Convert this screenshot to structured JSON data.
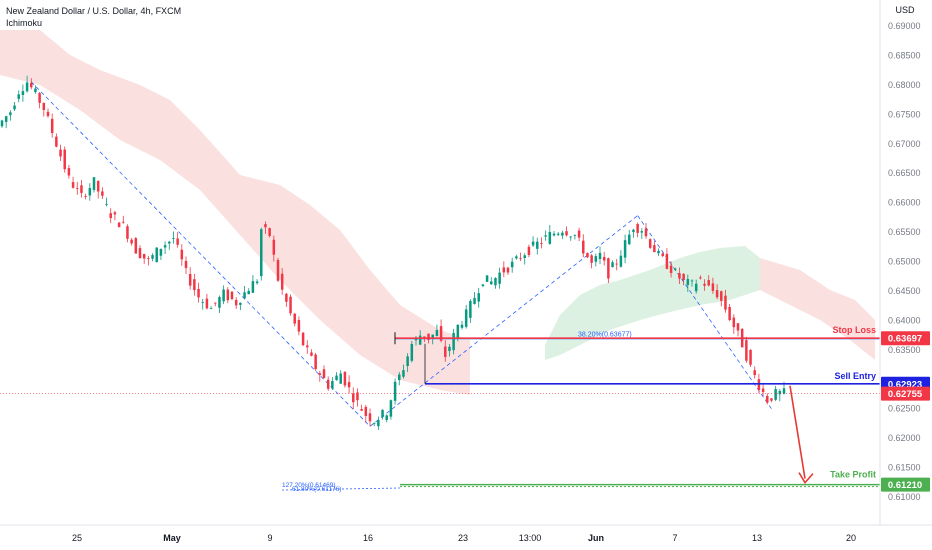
{
  "header": {
    "title": "New Zealand Dollar / U.S. Dollar, 4h, FXCM",
    "indicator": "Ichimoku"
  },
  "chart_data": {
    "type": "candlestick",
    "currency_label": "USD",
    "y_ticks": [
      "0.69000",
      "0.68500",
      "0.68000",
      "0.67500",
      "0.67000",
      "0.66500",
      "0.66000",
      "0.65500",
      "0.65000",
      "0.64500",
      "0.64000",
      "0.63500",
      "0.62500",
      "0.62000",
      "0.61500",
      "0.61000"
    ],
    "x_ticks": [
      "25",
      "May",
      "9",
      "16",
      "23",
      "13:00",
      "Jun",
      "7",
      "13",
      "20"
    ],
    "ylim": [
      0.6055,
      0.6905
    ],
    "levels": [
      {
        "name": "Stop Loss",
        "value": "0.63697",
        "color": "#f23645"
      },
      {
        "name": "Sell Entry",
        "value": "0.62923",
        "color": "#1e22e0"
      },
      {
        "name": "Take Profit",
        "value": "0.61210",
        "color": "#089981"
      }
    ],
    "current_price": "0.62755",
    "fib_labels": {
      "retracement": "38.20%(0.63677)",
      "extension_top": "127.20%(0.61469)",
      "extension_bottom": "61.80%(0.61176)"
    },
    "price_path": [
      [
        0,
        0.673
      ],
      [
        3,
        0.6755
      ],
      [
        5,
        0.679
      ],
      [
        7,
        0.6805
      ],
      [
        9,
        0.6785
      ],
      [
        11,
        0.676
      ],
      [
        14,
        0.67
      ],
      [
        17,
        0.664
      ],
      [
        20,
        0.661
      ],
      [
        23,
        0.6635
      ],
      [
        25,
        0.6605
      ],
      [
        27,
        0.658
      ],
      [
        30,
        0.656
      ],
      [
        33,
        0.652
      ],
      [
        36,
        0.65
      ],
      [
        39,
        0.6525
      ],
      [
        42,
        0.654
      ],
      [
        45,
        0.648
      ],
      [
        48,
        0.644
      ],
      [
        51,
        0.642
      ],
      [
        54,
        0.6445
      ],
      [
        57,
        0.643
      ],
      [
        60,
        0.6455
      ],
      [
        62,
        0.647
      ],
      [
        63,
        0.6555
      ],
      [
        65,
        0.6545
      ],
      [
        67,
        0.647
      ],
      [
        70,
        0.641
      ],
      [
        73,
        0.636
      ],
      [
        76,
        0.632
      ],
      [
        79,
        0.629
      ],
      [
        82,
        0.631
      ],
      [
        85,
        0.627
      ],
      [
        88,
        0.624
      ],
      [
        90,
        0.623
      ],
      [
        93,
        0.6245
      ],
      [
        95,
        0.629
      ],
      [
        97,
        0.632
      ],
      [
        99,
        0.636
      ],
      [
        101,
        0.6375
      ],
      [
        103,
        0.637
      ],
      [
        105,
        0.638
      ],
      [
        107,
        0.634
      ],
      [
        110,
        0.639
      ],
      [
        112,
        0.641
      ],
      [
        114,
        0.644
      ],
      [
        116,
        0.647
      ],
      [
        118,
        0.6465
      ],
      [
        120,
        0.648
      ],
      [
        123,
        0.6495
      ],
      [
        126,
        0.6515
      ],
      [
        129,
        0.653
      ],
      [
        132,
        0.6545
      ],
      [
        135,
        0.6555
      ],
      [
        138,
        0.6545
      ],
      [
        140,
        0.652
      ],
      [
        142,
        0.6495
      ],
      [
        144,
        0.651
      ],
      [
        146,
        0.648
      ],
      [
        148,
        0.65
      ],
      [
        150,
        0.653
      ],
      [
        152,
        0.656
      ],
      [
        154,
        0.6555
      ],
      [
        156,
        0.653
      ],
      [
        158,
        0.651
      ],
      [
        160,
        0.6495
      ],
      [
        162,
        0.648
      ],
      [
        164,
        0.6465
      ],
      [
        166,
        0.646
      ],
      [
        168,
        0.647
      ],
      [
        170,
        0.6455
      ],
      [
        172,
        0.6445
      ],
      [
        174,
        0.642
      ],
      [
        176,
        0.639
      ],
      [
        178,
        0.636
      ],
      [
        180,
        0.632
      ],
      [
        182,
        0.629
      ],
      [
        184,
        0.6265
      ],
      [
        186,
        0.6275
      ],
      [
        187,
        0.6276
      ]
    ]
  }
}
